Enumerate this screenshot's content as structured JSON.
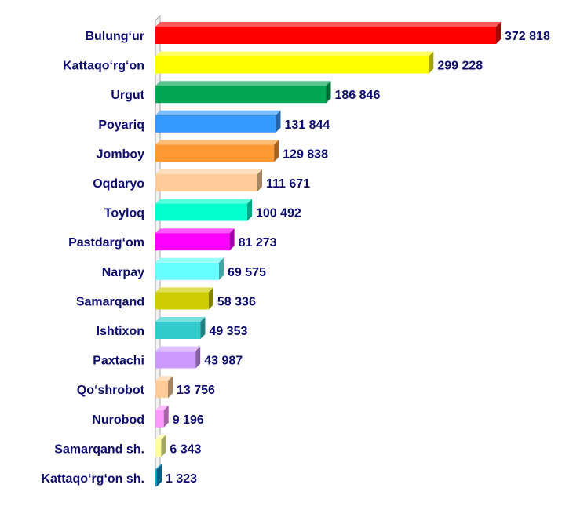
{
  "chart_data": {
    "type": "bar",
    "orientation": "horizontal",
    "style": "3d",
    "grid": false,
    "legend": "none",
    "xlim": [
      0,
      372818
    ],
    "categories": [
      "Bulung‘ur",
      "Kattaqo‘rg‘on",
      "Urgut",
      "Poyariq",
      "Jomboy",
      "Oqdaryo",
      "Toyloq",
      "Pastdarg‘om",
      "Narpay",
      "Samarqand",
      "Ishtixon",
      "Paxtachi",
      "Qo‘shrobot",
      "Nurobod",
      "Samarqand sh.",
      "Kattaqo‘rg‘on sh."
    ],
    "values": [
      372818,
      299228,
      186846,
      131844,
      129838,
      111671,
      100492,
      81273,
      69575,
      58336,
      49353,
      43987,
      13756,
      9196,
      6343,
      1323
    ],
    "value_labels": [
      "372 818",
      "299 228",
      "186 846",
      "131 844",
      "129 838",
      "111 671",
      "100 492",
      "81 273",
      "69 575",
      "58 336",
      "49 353",
      "43 987",
      "13 756",
      "9 196",
      "6 343",
      "1 323"
    ],
    "colors": [
      "#ff0000",
      "#ffff00",
      "#00a651",
      "#3399ff",
      "#ff9933",
      "#ffcc99",
      "#00ffcc",
      "#ff00ff",
      "#66ffff",
      "#cccc00",
      "#33cccc",
      "#cc99ff",
      "#ffcc99",
      "#ff99ff",
      "#ffff99",
      "#0099cc"
    ],
    "label_color": "#0d0d6e",
    "axis_color": "#a6a6a6"
  }
}
